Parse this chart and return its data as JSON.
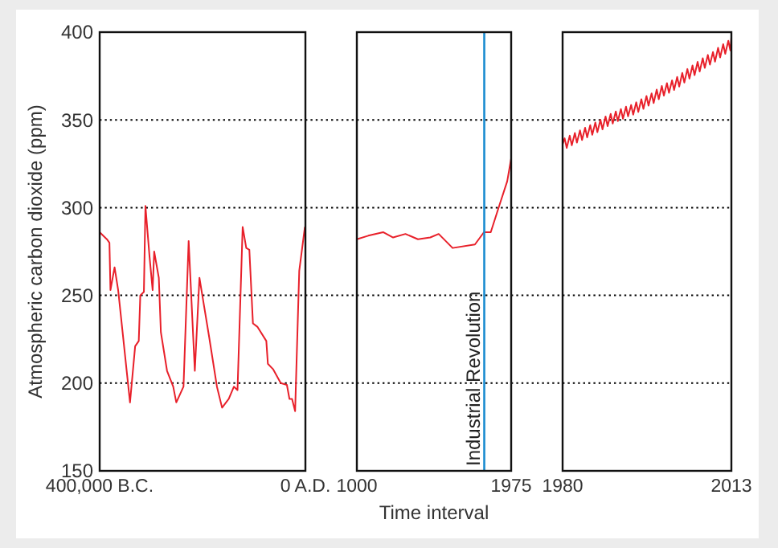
{
  "chart_data": [
    {
      "type": "line",
      "ylabel": "Atmospheric carbon dioxide (ppm)",
      "xlim": [
        -400000,
        0
      ],
      "xticks": [
        {
          "value": -400000,
          "label": "400,000 B.C."
        },
        {
          "value": 0,
          "label": "0 A.D."
        }
      ],
      "ylim": [
        150,
        400
      ],
      "yticks": [
        150,
        200,
        250,
        300,
        350,
        400
      ],
      "grid": "y",
      "x": [
        -400000,
        -386000,
        -381000,
        -379000,
        -371000,
        -364000,
        -341000,
        -331000,
        -324000,
        -321000,
        -314000,
        -311000,
        -303000,
        -297000,
        -294000,
        -285000,
        -281000,
        -269000,
        -257000,
        -251000,
        -237000,
        -227000,
        -215000,
        -206000,
        -187000,
        -172000,
        -162000,
        -149000,
        -139000,
        -132000,
        -122000,
        -115000,
        -109000,
        -102000,
        -93000,
        -76000,
        -73000,
        -63000,
        -48000,
        -36000,
        -31000,
        -26000,
        -20000,
        -12000,
        -1000
      ],
      "series": [
        {
          "color": "#e8202a",
          "values": [
            286,
            282,
            280,
            253,
            266,
            253,
            189,
            221,
            224,
            250,
            252,
            301,
            272,
            253,
            275,
            260,
            229,
            207,
            198,
            189,
            198,
            281,
            207,
            260,
            226,
            198,
            186,
            191,
            198,
            196,
            289,
            277,
            276,
            234,
            232,
            224,
            211,
            208,
            200,
            199,
            191,
            191,
            184,
            264,
            289
          ]
        }
      ]
    },
    {
      "type": "line",
      "xlabel": "Time interval",
      "xlim": [
        1000,
        1975
      ],
      "xticks": [
        1000,
        1975
      ],
      "ylim": [
        150,
        400
      ],
      "yticks": [
        150,
        200,
        250,
        300,
        350,
        400
      ],
      "grid": "y",
      "tick_labels": "x",
      "x": [
        1000,
        1072,
        1166,
        1229,
        1307,
        1386,
        1464,
        1517,
        1605,
        1746,
        1803,
        1846,
        1903,
        1950,
        1975
      ],
      "series": [
        {
          "color": "#e8202a",
          "values": [
            282,
            284,
            286,
            283,
            285,
            282,
            283,
            285,
            277,
            279,
            286,
            286,
            302,
            315,
            328
          ]
        }
      ],
      "ref_lines": [
        {
          "axis": "x",
          "value": 1805,
          "label": "Industrial Revolution",
          "color": "#1a8bd0"
        }
      ]
    },
    {
      "type": "line",
      "xlim": [
        1980,
        2013
      ],
      "xticks": [
        1980,
        2013
      ],
      "ylim": [
        150,
        400
      ],
      "yticks": [
        150,
        200,
        250,
        300,
        350,
        400
      ],
      "grid": "y",
      "tick_labels": "x",
      "x": [
        1980,
        1980.4,
        1980.8,
        1981.4,
        1981.8,
        1982.4,
        1982.8,
        1983.4,
        1983.8,
        1984.4,
        1984.8,
        1985.4,
        1985.8,
        1986.4,
        1986.8,
        1987.4,
        1987.8,
        1988.4,
        1988.8,
        1989.4,
        1989.8,
        1990.4,
        1990.8,
        1991.4,
        1991.8,
        1992.4,
        1992.8,
        1993.4,
        1993.8,
        1994.4,
        1994.8,
        1995.4,
        1995.8,
        1996.4,
        1996.8,
        1997.4,
        1997.8,
        1998.4,
        1998.8,
        1999.4,
        1999.8,
        2000.4,
        2000.8,
        2001.4,
        2001.8,
        2002.4,
        2002.8,
        2003.4,
        2003.8,
        2004.4,
        2004.8,
        2005.4,
        2005.8,
        2006.4,
        2006.8,
        2007.4,
        2007.8,
        2008.4,
        2008.8,
        2009.4,
        2009.8,
        2010.4,
        2010.8,
        2011.4,
        2011.8,
        2012.4,
        2012.8,
        2013
      ],
      "series": [
        {
          "color": "#e8202a",
          "values": [
            336,
            339.5,
            334,
            341,
            335.5,
            342.5,
            337,
            344,
            338.5,
            345.5,
            340,
            347,
            341.5,
            348.5,
            343,
            350.1,
            344.6,
            351.9,
            346.4,
            353.4,
            347.9,
            354.8,
            349.3,
            356.2,
            350.7,
            357.5,
            352,
            358.5,
            353,
            360,
            354.5,
            361.8,
            356.3,
            363.6,
            358.1,
            365.1,
            359.6,
            367.3,
            361.8,
            369.3,
            363.8,
            370.9,
            365.4,
            372.5,
            367,
            374.5,
            369,
            376.8,
            371.3,
            379,
            373.5,
            381,
            375.5,
            383.1,
            377.6,
            385.1,
            379.6,
            387,
            381.5,
            388.7,
            383.2,
            391.1,
            385.6,
            393.1,
            387.6,
            395.1,
            389.6,
            397
          ]
        }
      ]
    }
  ]
}
